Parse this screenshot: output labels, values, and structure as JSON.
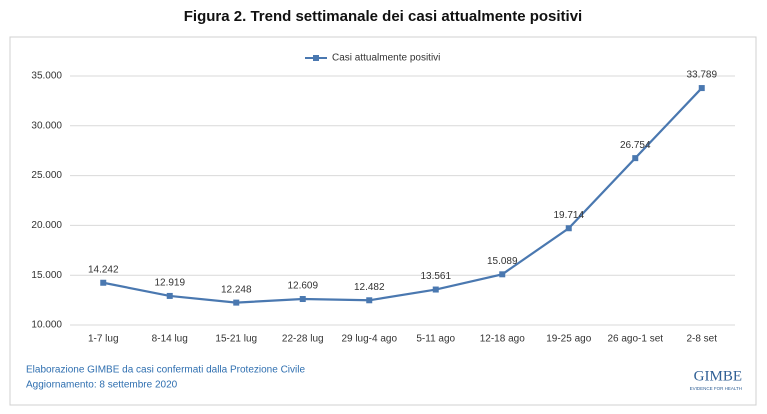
{
  "chart_data": {
    "type": "line",
    "title": "Figura 2. Trend settimanale dei casi attualmente positivi",
    "categories": [
      "1-7 lug",
      "8-14 lug",
      "15-21 lug",
      "22-28 lug",
      "29 lug-4 ago",
      "5-11 ago",
      "12-18 ago",
      "19-25 ago",
      "26 ago-1 set",
      "2-8 set"
    ],
    "series": [
      {
        "name": "Casi attualmente positivi",
        "color": "#4a78b0",
        "values": [
          14242,
          12919,
          12248,
          12609,
          12482,
          13561,
          15089,
          19714,
          26754,
          33789
        ],
        "value_labels": [
          "14.242",
          "12.919",
          "12.248",
          "12.609",
          "12.482",
          "13.561",
          "15.089",
          "19.714",
          "26.754",
          "33.789"
        ]
      }
    ],
    "ylim": [
      10000,
      35000
    ],
    "yticks": [
      {
        "value": 10000,
        "label": "10.000"
      },
      {
        "value": 15000,
        "label": "15.000"
      },
      {
        "value": 20000,
        "label": "20.000"
      },
      {
        "value": 25000,
        "label": "25.000"
      },
      {
        "value": 30000,
        "label": "30.000"
      },
      {
        "value": 35000,
        "label": "35.000"
      }
    ],
    "grid": true,
    "legend": "top"
  },
  "footer": {
    "source": "Elaborazione GIMBE da casi confermati dalla Protezione Civile",
    "update": "Aggiornamento: 8 settembre 2020",
    "logo": "GIMBE",
    "logo_tagline": "EVIDENCE FOR HEALTH"
  }
}
